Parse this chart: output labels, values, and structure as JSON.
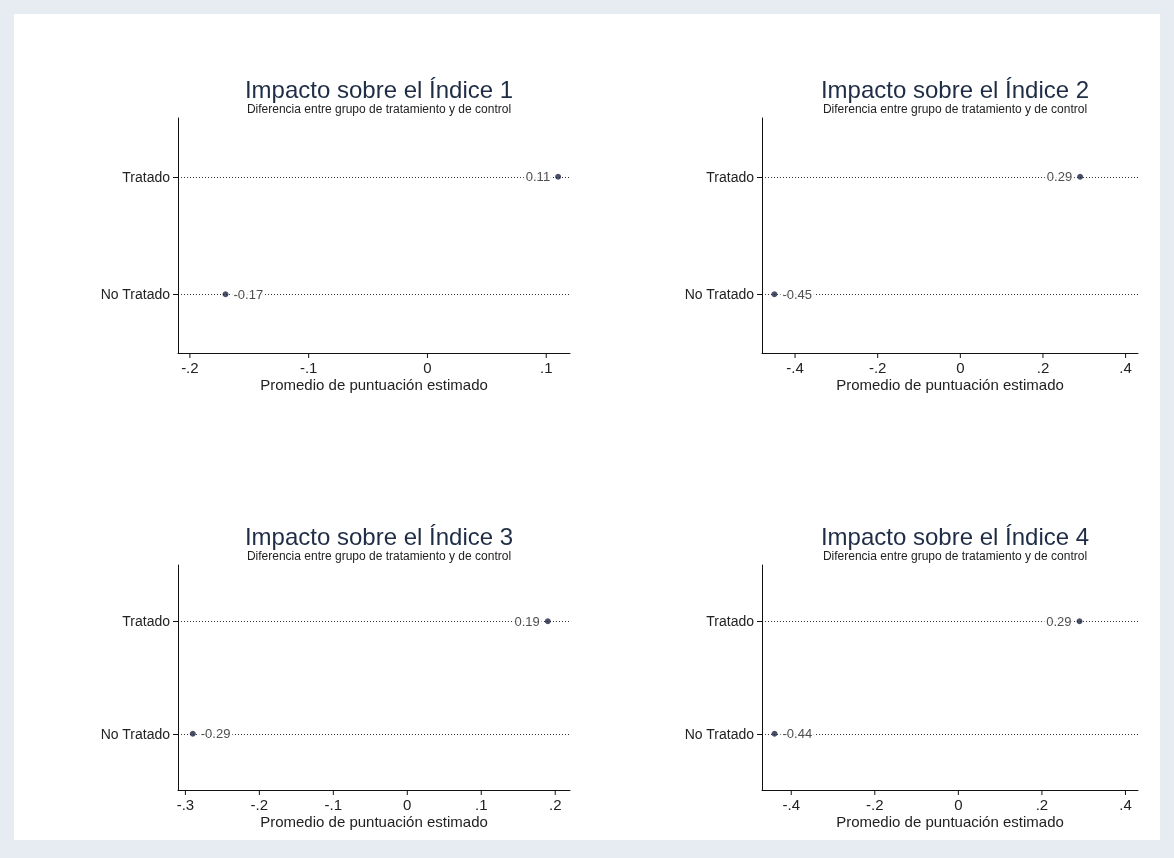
{
  "chart_data": [
    {
      "type": "scatter",
      "orientation": "horizontal",
      "title": "Impacto sobre el Índice 1",
      "subtitle": "Diferencia entre grupo de tratamiento y de control",
      "xlabel": "Promedio de puntuación estimado",
      "categories": [
        "Tratado",
        "No Tratado"
      ],
      "values": [
        0.11,
        -0.17
      ],
      "color": "#1a2340",
      "marker": "circle",
      "data_labels": true,
      "grid": "y",
      "xlim": [
        -0.21,
        0.12
      ],
      "xticks": [
        {
          "value": -0.2,
          "label": "-.2"
        },
        {
          "value": -0.1,
          "label": "-.1"
        },
        {
          "value": 0,
          "label": "0"
        },
        {
          "value": 0.1,
          "label": ".1"
        }
      ]
    },
    {
      "type": "scatter",
      "orientation": "horizontal",
      "title": "Impacto sobre el Índice 2",
      "subtitle": "Diferencia entre grupo de tratamiento y de control",
      "xlabel": "Promedio de puntuación estimado",
      "categories": [
        "Tratado",
        "No Tratado"
      ],
      "values": [
        0.29,
        -0.45
      ],
      "color": "#1a2340",
      "marker": "circle",
      "data_labels": true,
      "grid": "y",
      "xlim": [
        -0.48,
        0.43
      ],
      "xticks": [
        {
          "value": -0.4,
          "label": "-.4"
        },
        {
          "value": -0.2,
          "label": "-.2"
        },
        {
          "value": 0,
          "label": "0"
        },
        {
          "value": 0.2,
          "label": ".2"
        },
        {
          "value": 0.4,
          "label": ".4"
        }
      ]
    },
    {
      "type": "scatter",
      "orientation": "horizontal",
      "title": "Impacto sobre el Índice 3",
      "subtitle": "Diferencia entre grupo de tratamiento y de control",
      "xlabel": "Promedio de puntuación estimado",
      "categories": [
        "Tratado",
        "No Tratado"
      ],
      "values": [
        0.19,
        -0.29
      ],
      "color": "#1a2340",
      "marker": "circle",
      "data_labels": true,
      "grid": "y",
      "xlim": [
        -0.31,
        0.22
      ],
      "xticks": [
        {
          "value": -0.3,
          "label": "-.3"
        },
        {
          "value": -0.2,
          "label": "-.2"
        },
        {
          "value": -0.1,
          "label": "-.1"
        },
        {
          "value": 0,
          "label": "0"
        },
        {
          "value": 0.1,
          "label": ".1"
        },
        {
          "value": 0.2,
          "label": ".2"
        }
      ]
    },
    {
      "type": "scatter",
      "orientation": "horizontal",
      "title": "Impacto sobre el Índice 4",
      "subtitle": "Diferencia entre grupo de tratamiento y de control",
      "xlabel": "Promedio de puntuación estimado",
      "categories": [
        "Tratado",
        "No Tratado"
      ],
      "values": [
        0.29,
        -0.44
      ],
      "color": "#1a2340",
      "marker": "circle",
      "data_labels": true,
      "grid": "y",
      "xlim": [
        -0.47,
        0.43
      ],
      "xticks": [
        {
          "value": -0.4,
          "label": "-.4"
        },
        {
          "value": -0.2,
          "label": "-.2"
        },
        {
          "value": 0,
          "label": "0"
        },
        {
          "value": 0.2,
          "label": ".2"
        },
        {
          "value": 0.4,
          "label": ".4"
        }
      ]
    }
  ]
}
